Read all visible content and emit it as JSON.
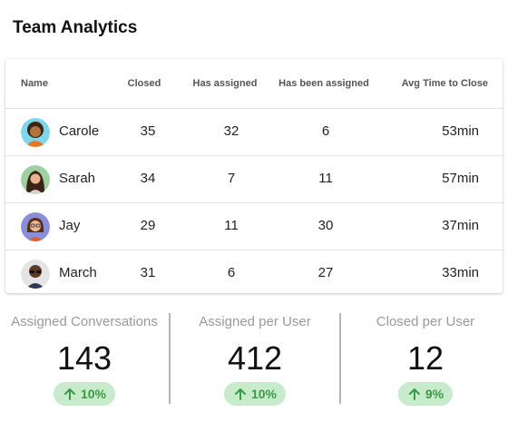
{
  "title": "Team Analytics",
  "table": {
    "columns": [
      "Name",
      "Closed",
      "Has assigned",
      "Has been assigned",
      "Avg Time to Close"
    ],
    "rows": [
      {
        "name": "Carole",
        "closed": "35",
        "has_assigned": "32",
        "has_been_assigned": "6",
        "avg_time": "53min",
        "avatar": "avatar-carole"
      },
      {
        "name": "Sarah",
        "closed": "34",
        "has_assigned": "7",
        "has_been_assigned": "11",
        "avg_time": "57min",
        "avatar": "avatar-sarah"
      },
      {
        "name": "Jay",
        "closed": "29",
        "has_assigned": "11",
        "has_been_assigned": "30",
        "avg_time": "37min",
        "avatar": "avatar-jay"
      },
      {
        "name": "March",
        "closed": "31",
        "has_assigned": "6",
        "has_been_assigned": "27",
        "avg_time": "33min",
        "avatar": "avatar-march"
      }
    ]
  },
  "stats": [
    {
      "label": "Assigned Conversations",
      "value": "143",
      "change": "10%",
      "trend": "up"
    },
    {
      "label": "Assigned per User",
      "value": "412",
      "change": "10%",
      "trend": "up"
    },
    {
      "label": "Closed per User",
      "value": "12",
      "change": "9%",
      "trend": "up"
    }
  ],
  "colors": {
    "badge_bg": "#c8ebcb",
    "badge_fg": "#3a9a44",
    "label_gray": "#9a9a9a"
  }
}
